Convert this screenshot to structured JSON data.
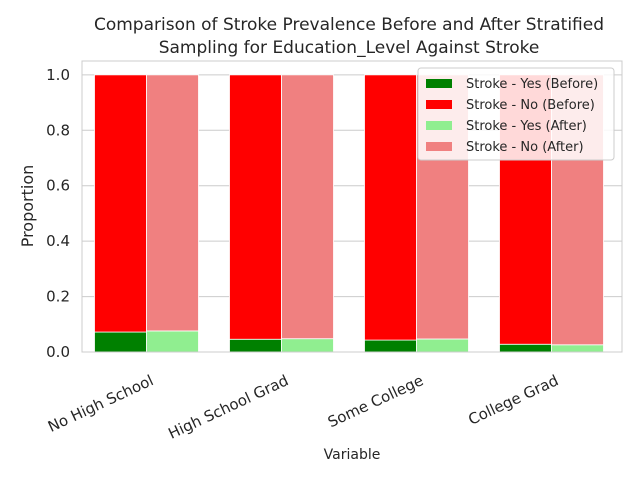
{
  "chart_data": {
    "type": "bar",
    "title_lines": [
      "Comparison of Stroke Prevalence Before and After Stratified",
      "Sampling for Education_Level Against Stroke"
    ],
    "xlabel": "Variable",
    "ylabel": "Proportion",
    "ylim": [
      0,
      1.05
    ],
    "yticks": [
      "0.0",
      "0.2",
      "0.4",
      "0.6",
      "0.8",
      "1.0"
    ],
    "ytick_values": [
      0.0,
      0.2,
      0.4,
      0.6,
      0.8,
      1.0
    ],
    "grid": true,
    "legend_position": "top-right",
    "stacked": true,
    "categories": [
      "No High School",
      "High School Grad",
      "Some College",
      "College Grad"
    ],
    "series": [
      {
        "name": "Stroke - Yes (Before)",
        "group": "before",
        "color": "#008000",
        "values": [
          0.072,
          0.046,
          0.043,
          0.028
        ]
      },
      {
        "name": "Stroke - No (Before)",
        "group": "before",
        "color": "#ff0000",
        "values": [
          0.928,
          0.954,
          0.957,
          0.972
        ]
      },
      {
        "name": "Stroke - Yes (After)",
        "group": "after",
        "color": "#90ee90",
        "values": [
          0.076,
          0.048,
          0.047,
          0.026
        ]
      },
      {
        "name": "Stroke - No (After)",
        "group": "after",
        "color": "#f08080",
        "values": [
          0.924,
          0.952,
          0.953,
          0.974
        ]
      }
    ]
  }
}
